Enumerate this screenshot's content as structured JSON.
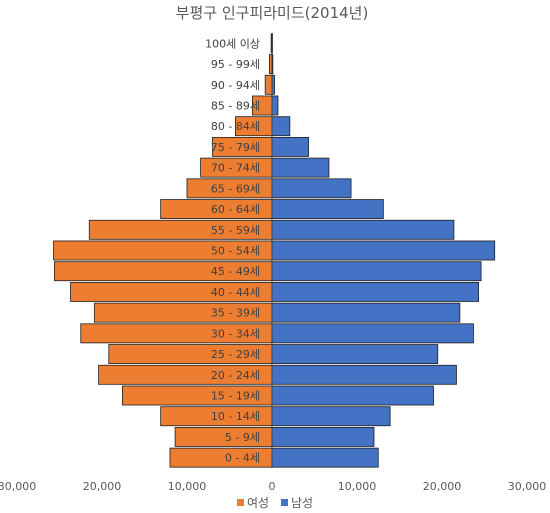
{
  "chart_data": {
    "type": "bar",
    "orientation": "horizontal",
    "title": "부평구 인구피라미드(2014년)",
    "categories": [
      "0 - 4세",
      "5 - 9세",
      "10 - 14세",
      "15 - 19세",
      "20 - 24세",
      "25 - 29세",
      "30 - 34세",
      "35 - 39세",
      "40 - 44세",
      "45 - 49세",
      "50 - 54세",
      "55 - 59세",
      "60 - 64세",
      "65 - 69세",
      "70 - 74세",
      "75 - 79세",
      "80 - 84세",
      "85 - 89세",
      "90 - 94세",
      "95 - 99세",
      "100세 이상"
    ],
    "series": [
      {
        "name": "여성",
        "color": "#ED7D31",
        "side": "left",
        "values": [
          12000,
          11400,
          13100,
          17600,
          20400,
          19200,
          22500,
          20900,
          23700,
          25600,
          25700,
          21500,
          13100,
          10000,
          8400,
          7000,
          4300,
          2300,
          800,
          300,
          100
        ]
      },
      {
        "name": "남성",
        "color": "#4472C4",
        "side": "right",
        "values": [
          12500,
          12000,
          13900,
          19000,
          21700,
          19500,
          23700,
          22100,
          24300,
          24600,
          26200,
          21400,
          13100,
          9300,
          6700,
          4300,
          2100,
          700,
          300,
          100,
          50
        ]
      }
    ],
    "xlim": [
      -30000,
      30000
    ],
    "xticks": [
      "30,000",
      "20,000",
      "10,000",
      "0",
      "10,000",
      "20,000",
      "30,000"
    ],
    "xtick_values": [
      -30000,
      -20000,
      -10000,
      0,
      10000,
      20000,
      30000
    ],
    "grid": false,
    "legend_position": "bottom"
  }
}
